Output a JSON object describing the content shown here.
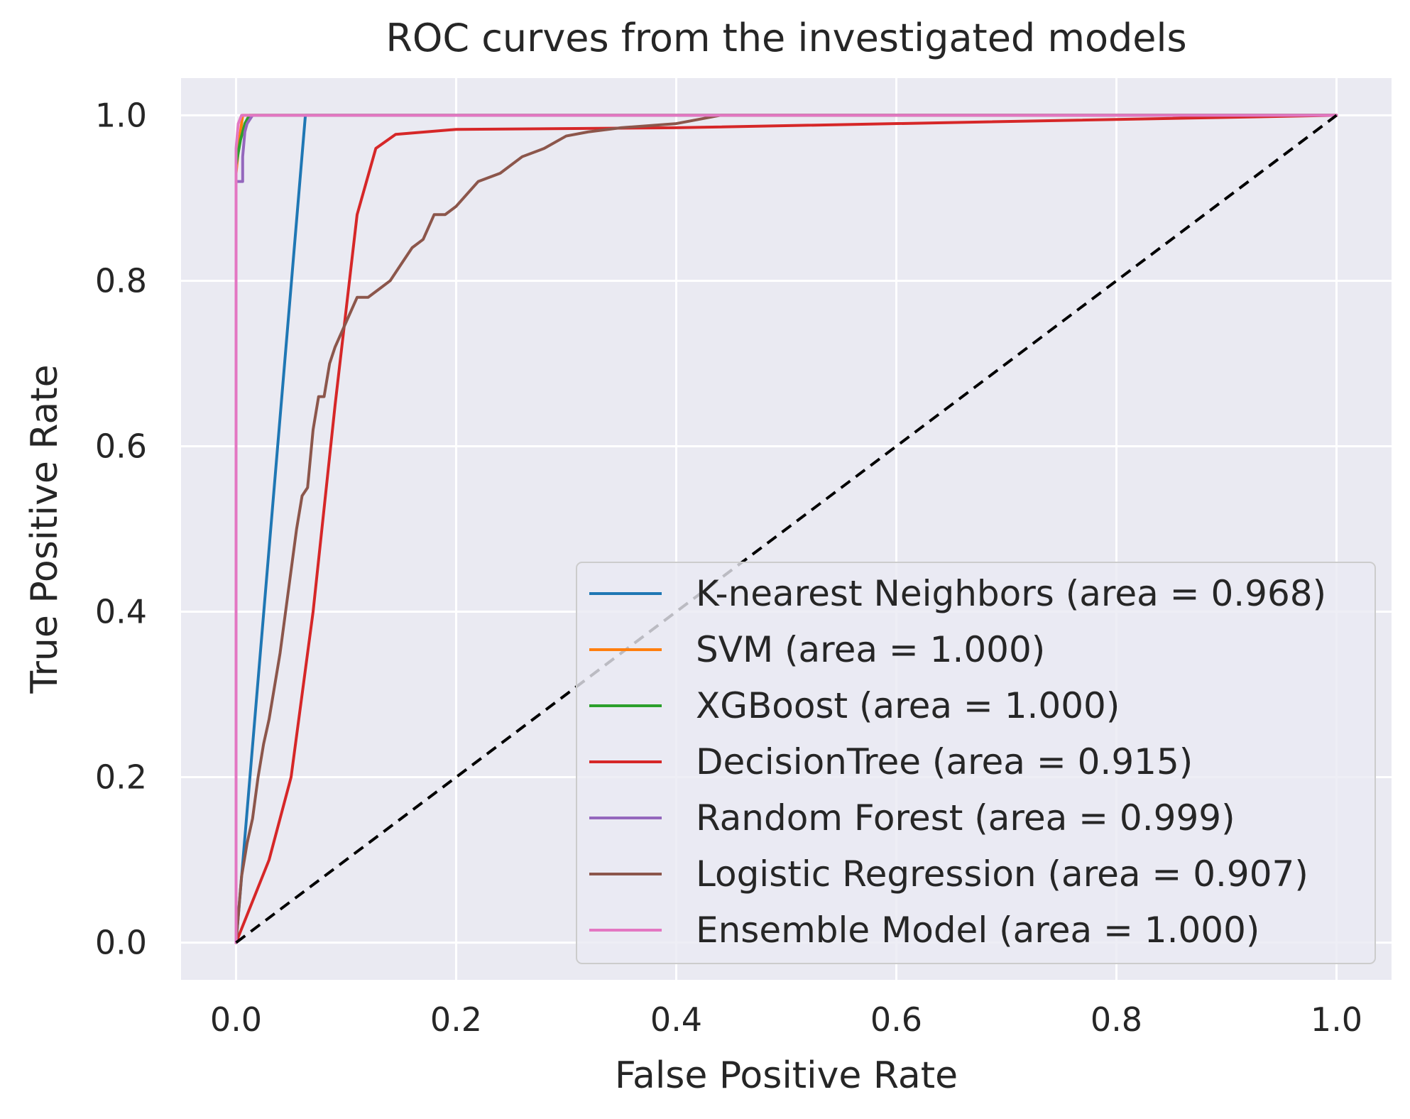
{
  "chart_data": {
    "type": "line",
    "title": "ROC curves from the investigated models",
    "xlabel": "False Positive Rate",
    "ylabel": "True Positive Rate",
    "xlim": [
      -0.05,
      1.05
    ],
    "ylim": [
      -0.045,
      1.045
    ],
    "xticks": [
      0.0,
      0.2,
      0.4,
      0.6,
      0.8,
      1.0
    ],
    "yticks": [
      0.0,
      0.2,
      0.4,
      0.6,
      0.8,
      1.0
    ],
    "xtick_labels": [
      "0.0",
      "0.2",
      "0.4",
      "0.6",
      "0.8",
      "1.0"
    ],
    "ytick_labels": [
      "0.0",
      "0.2",
      "0.4",
      "0.6",
      "0.8",
      "1.0"
    ],
    "grid": true,
    "background_color": "#eaeaf2",
    "legend_position": "lower-right",
    "series": [
      {
        "name": "K-nearest Neighbors",
        "label": "K-nearest Neighbors (area = 0.968)",
        "auc": 0.968,
        "color": "#1f77b4",
        "x": [
          0.0,
          0.063,
          1.0
        ],
        "y": [
          0.0,
          1.0,
          1.0
        ]
      },
      {
        "name": "SVM",
        "label": "SVM (area = 1.000)",
        "auc": 1.0,
        "color": "#ff7f0e",
        "x": [
          0.0,
          0.0,
          0.003,
          0.006,
          1.0
        ],
        "y": [
          0.0,
          0.93,
          0.97,
          1.0,
          1.0
        ]
      },
      {
        "name": "XGBoost",
        "label": "XGBoost (area = 1.000)",
        "auc": 1.0,
        "color": "#2ca02c",
        "x": [
          0.0,
          0.0,
          0.004,
          0.008,
          0.012,
          1.0
        ],
        "y": [
          0.0,
          0.94,
          0.97,
          0.99,
          1.0,
          1.0
        ]
      },
      {
        "name": "DecisionTree",
        "label": "DecisionTree (area = 0.915)",
        "auc": 0.915,
        "color": "#d62728",
        "x": [
          0.0,
          0.03,
          0.05,
          0.07,
          0.09,
          0.11,
          0.127,
          0.145,
          0.2,
          0.4,
          1.0
        ],
        "y": [
          0.0,
          0.1,
          0.2,
          0.4,
          0.65,
          0.88,
          0.96,
          0.977,
          0.983,
          0.985,
          1.0
        ]
      },
      {
        "name": "Random Forest",
        "label": "Random Forest (area = 0.999)",
        "auc": 0.999,
        "color": "#9467bd",
        "x": [
          0.0,
          0.0,
          0.006,
          0.006,
          0.008,
          0.01,
          0.015,
          1.0
        ],
        "y": [
          0.0,
          0.92,
          0.92,
          0.95,
          0.98,
          0.99,
          1.0,
          1.0
        ]
      },
      {
        "name": "Logistic Regression",
        "label": "Logistic Regression (area = 0.907)",
        "auc": 0.907,
        "color": "#8c564b",
        "x": [
          0.0,
          0.005,
          0.01,
          0.015,
          0.02,
          0.025,
          0.03,
          0.035,
          0.04,
          0.045,
          0.05,
          0.055,
          0.06,
          0.065,
          0.07,
          0.075,
          0.08,
          0.085,
          0.09,
          0.1,
          0.11,
          0.12,
          0.13,
          0.14,
          0.15,
          0.16,
          0.17,
          0.18,
          0.19,
          0.2,
          0.22,
          0.24,
          0.26,
          0.28,
          0.3,
          0.32,
          0.35,
          0.4,
          0.44,
          0.52,
          1.0
        ],
        "y": [
          0.0,
          0.08,
          0.12,
          0.15,
          0.2,
          0.24,
          0.27,
          0.31,
          0.35,
          0.4,
          0.45,
          0.5,
          0.54,
          0.55,
          0.62,
          0.66,
          0.66,
          0.7,
          0.72,
          0.75,
          0.78,
          0.78,
          0.79,
          0.8,
          0.82,
          0.84,
          0.85,
          0.88,
          0.88,
          0.89,
          0.92,
          0.93,
          0.95,
          0.96,
          0.975,
          0.98,
          0.985,
          0.99,
          1.0,
          1.0,
          1.0
        ]
      },
      {
        "name": "Ensemble Model",
        "label": "Ensemble Model (area = 1.000)",
        "auc": 1.0,
        "color": "#e377c2",
        "x": [
          0.0,
          0.0,
          0.002,
          0.005,
          1.0
        ],
        "y": [
          0.0,
          0.96,
          0.99,
          1.0,
          1.0
        ]
      }
    ],
    "reference_line": {
      "x": [
        0.0,
        1.0
      ],
      "y": [
        0.0,
        1.0
      ],
      "color": "#000000",
      "style": "dashed"
    }
  }
}
